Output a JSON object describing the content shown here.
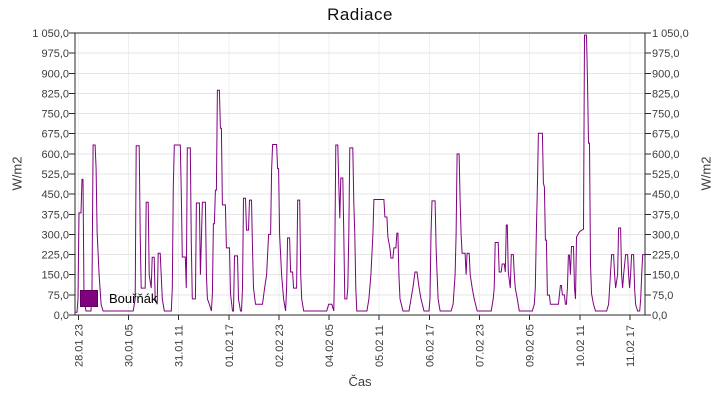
{
  "page": {
    "title": "Radiace"
  },
  "legend": {
    "label": "Bouřňák",
    "swatch_color": "#800080"
  },
  "colors": {
    "accent": "#800080",
    "grid_h": "#e5e5e5",
    "grid_v": "#efefef",
    "frame": "#2a2a2a",
    "text": "#3c3c3c",
    "title_text": "#101010"
  },
  "chart_data": {
    "type": "line",
    "title": "Radiace",
    "xlabel": "Čas",
    "ylabel_left": "W/m2",
    "ylabel_right": "W/m2",
    "grid": true,
    "legend_position": "bottom-left",
    "y_axis": {
      "min": 0,
      "max": 1050,
      "step": 75,
      "tick_labels": [
        "0,0",
        "75,0",
        "150,0",
        "225,0",
        "300,0",
        "375,0",
        "450,0",
        "525,0",
        "600,0",
        "675,0",
        "750,0",
        "825,0",
        "900,0",
        "975,0",
        "1 050,0"
      ]
    },
    "x_axis": {
      "domain_hours": [
        0,
        341
      ],
      "tick_hours": [
        2,
        32,
        62,
        92,
        122,
        152,
        182,
        212,
        242,
        272,
        302,
        332
      ],
      "tick_labels": [
        "28.01 23",
        "30.01 05",
        "31.01 11",
        "01.02 17",
        "02.02 23",
        "04.02 05",
        "05.02 11",
        "06.02 17",
        "07.02 23",
        "09.02 05",
        "10.02 11",
        "11.02 17"
      ]
    },
    "series": [
      {
        "name": "Bouřňák",
        "color": "#800080",
        "points": [
          [
            0,
            10
          ],
          [
            1.2,
            10
          ],
          [
            1.8,
            60
          ],
          [
            2.4,
            380
          ],
          [
            3.6,
            380
          ],
          [
            4.2,
            505
          ],
          [
            4.8,
            505
          ],
          [
            5.4,
            60
          ],
          [
            6.6,
            15
          ],
          [
            9.6,
            15
          ],
          [
            10.2,
            100
          ],
          [
            10.8,
            633
          ],
          [
            12,
            633
          ],
          [
            12.6,
            545
          ],
          [
            13.2,
            310
          ],
          [
            14.4,
            150
          ],
          [
            15.6,
            40
          ],
          [
            16.8,
            15
          ],
          [
            34.8,
            15
          ],
          [
            36,
            60
          ],
          [
            36.6,
            630
          ],
          [
            38.4,
            630
          ],
          [
            39,
            300
          ],
          [
            39.6,
            100
          ],
          [
            42,
            100
          ],
          [
            42.6,
            420
          ],
          [
            43.8,
            420
          ],
          [
            44.4,
            150
          ],
          [
            45.6,
            100
          ],
          [
            46.2,
            215
          ],
          [
            47.4,
            215
          ],
          [
            48,
            60
          ],
          [
            49.2,
            40
          ],
          [
            49.8,
            230
          ],
          [
            51,
            230
          ],
          [
            52.2,
            60
          ],
          [
            53.4,
            15
          ],
          [
            57.6,
            15
          ],
          [
            58.2,
            100
          ],
          [
            58.8,
            477
          ],
          [
            59.4,
            633
          ],
          [
            63,
            633
          ],
          [
            63.6,
            450
          ],
          [
            64.2,
            216
          ],
          [
            66,
            216
          ],
          [
            66.6,
            100
          ],
          [
            67.2,
            622
          ],
          [
            69,
            622
          ],
          [
            69.6,
            268
          ],
          [
            70.2,
            60
          ],
          [
            72,
            60
          ],
          [
            72.6,
            417
          ],
          [
            74.4,
            417
          ],
          [
            75,
            150
          ],
          [
            76.2,
            420
          ],
          [
            78,
            420
          ],
          [
            78.6,
            150
          ],
          [
            79.2,
            60
          ],
          [
            80.4,
            40
          ],
          [
            81.6,
            15
          ],
          [
            82.2,
            80
          ],
          [
            82.8,
            340
          ],
          [
            83.4,
            340
          ],
          [
            84,
            465
          ],
          [
            84.6,
            465
          ],
          [
            85.2,
            837
          ],
          [
            86.4,
            837
          ],
          [
            87,
            695
          ],
          [
            87.6,
            695
          ],
          [
            88.2,
            410
          ],
          [
            90,
            410
          ],
          [
            90.6,
            250
          ],
          [
            92.4,
            250
          ],
          [
            93,
            80
          ],
          [
            94.2,
            15
          ],
          [
            94.8,
            15
          ],
          [
            95.4,
            220
          ],
          [
            97.2,
            220
          ],
          [
            97.8,
            60
          ],
          [
            99,
            15
          ],
          [
            99.6,
            15
          ],
          [
            100.2,
            100
          ],
          [
            100.8,
            435
          ],
          [
            102,
            435
          ],
          [
            102.6,
            316
          ],
          [
            103.8,
            316
          ],
          [
            104.4,
            428
          ],
          [
            105.6,
            428
          ],
          [
            106.2,
            250
          ],
          [
            106.8,
            100
          ],
          [
            108,
            40
          ],
          [
            112.2,
            40
          ],
          [
            113.4,
            100
          ],
          [
            114.6,
            150
          ],
          [
            115.8,
            300
          ],
          [
            117,
            300
          ],
          [
            117.6,
            540
          ],
          [
            118.2,
            635
          ],
          [
            120.6,
            635
          ],
          [
            121.2,
            545
          ],
          [
            121.8,
            545
          ],
          [
            122.4,
            300
          ],
          [
            123.6,
            150
          ],
          [
            124.8,
            60
          ],
          [
            126,
            15
          ],
          [
            126.6,
            100
          ],
          [
            127.2,
            287
          ],
          [
            128.4,
            287
          ],
          [
            129,
            160
          ],
          [
            130.2,
            160
          ],
          [
            130.8,
            100
          ],
          [
            132.6,
            100
          ],
          [
            133.2,
            428
          ],
          [
            134.4,
            428
          ],
          [
            135,
            150
          ],
          [
            135.6,
            60
          ],
          [
            136.8,
            15
          ],
          [
            150.6,
            15
          ],
          [
            151.8,
            40
          ],
          [
            153.6,
            40
          ],
          [
            154.8,
            15
          ],
          [
            155.4,
            230
          ],
          [
            156,
            633
          ],
          [
            157.2,
            633
          ],
          [
            157.8,
            480
          ],
          [
            158.4,
            360
          ],
          [
            159,
            510
          ],
          [
            160.2,
            510
          ],
          [
            160.8,
            300
          ],
          [
            161.4,
            60
          ],
          [
            162.6,
            60
          ],
          [
            163.2,
            100
          ],
          [
            163.8,
            300
          ],
          [
            164.4,
            622
          ],
          [
            166.2,
            622
          ],
          [
            166.8,
            420
          ],
          [
            167.4,
            300
          ],
          [
            168,
            100
          ],
          [
            168.6,
            15
          ],
          [
            174.6,
            15
          ],
          [
            175.8,
            60
          ],
          [
            177,
            150
          ],
          [
            178.2,
            300
          ],
          [
            178.8,
            430
          ],
          [
            184.8,
            430
          ],
          [
            185.4,
            365
          ],
          [
            186.6,
            365
          ],
          [
            187.2,
            290
          ],
          [
            188.4,
            250
          ],
          [
            189,
            212
          ],
          [
            190.2,
            212
          ],
          [
            190.8,
            250
          ],
          [
            192,
            250
          ],
          [
            192.6,
            305
          ],
          [
            193.2,
            305
          ],
          [
            193.8,
            150
          ],
          [
            194.4,
            60
          ],
          [
            196.2,
            15
          ],
          [
            199.8,
            15
          ],
          [
            201,
            60
          ],
          [
            202.2,
            104
          ],
          [
            203.4,
            160
          ],
          [
            204.6,
            160
          ],
          [
            205.8,
            104
          ],
          [
            207,
            60
          ],
          [
            208.8,
            15
          ],
          [
            211.8,
            15
          ],
          [
            212.4,
            60
          ],
          [
            213,
            300
          ],
          [
            213.6,
            425
          ],
          [
            215.4,
            425
          ],
          [
            216,
            250
          ],
          [
            216.6,
            150
          ],
          [
            217.2,
            60
          ],
          [
            218.4,
            15
          ],
          [
            225,
            15
          ],
          [
            226.2,
            40
          ],
          [
            227.4,
            150
          ],
          [
            228,
            300
          ],
          [
            228.6,
            600
          ],
          [
            229.8,
            600
          ],
          [
            230.4,
            430
          ],
          [
            231,
            300
          ],
          [
            231.6,
            230
          ],
          [
            233.4,
            230
          ],
          [
            234,
            150
          ],
          [
            234.6,
            230
          ],
          [
            235.8,
            230
          ],
          [
            236.4,
            150
          ],
          [
            237.6,
            100
          ],
          [
            238.8,
            60
          ],
          [
            240.6,
            15
          ],
          [
            249,
            15
          ],
          [
            250.2,
            60
          ],
          [
            250.8,
            100
          ],
          [
            251.4,
            270
          ],
          [
            253.2,
            270
          ],
          [
            253.8,
            160
          ],
          [
            255,
            160
          ],
          [
            255.6,
            190
          ],
          [
            256.8,
            190
          ],
          [
            257.4,
            160
          ],
          [
            258,
            335
          ],
          [
            258.6,
            335
          ],
          [
            259.2,
            160
          ],
          [
            260.4,
            100
          ],
          [
            261,
            225
          ],
          [
            262.2,
            225
          ],
          [
            262.8,
            150
          ],
          [
            263.4,
            100
          ],
          [
            264.6,
            60
          ],
          [
            265.8,
            15
          ],
          [
            273.6,
            15
          ],
          [
            274.8,
            40
          ],
          [
            275.4,
            100
          ],
          [
            276,
            300
          ],
          [
            276.6,
            480
          ],
          [
            277.2,
            677
          ],
          [
            279.6,
            677
          ],
          [
            280.2,
            490
          ],
          [
            280.8,
            477
          ],
          [
            281.4,
            279
          ],
          [
            282,
            279
          ],
          [
            282.6,
            74
          ],
          [
            283.8,
            74
          ],
          [
            284.4,
            40
          ],
          [
            289.2,
            40
          ],
          [
            289.8,
            75
          ],
          [
            290.4,
            110
          ],
          [
            291,
            110
          ],
          [
            291.6,
            75
          ],
          [
            292.8,
            75
          ],
          [
            293.4,
            40
          ],
          [
            294,
            40
          ],
          [
            294.6,
            100
          ],
          [
            295.2,
            223
          ],
          [
            295.8,
            223
          ],
          [
            296.4,
            150
          ],
          [
            297,
            255
          ],
          [
            298.2,
            255
          ],
          [
            298.8,
            100
          ],
          [
            299.4,
            60
          ],
          [
            300,
            290
          ],
          [
            301.8,
            310
          ],
          [
            304.2,
            320
          ],
          [
            304.8,
            1042
          ],
          [
            306,
            1042
          ],
          [
            306.6,
            870
          ],
          [
            307.2,
            640
          ],
          [
            307.8,
            640
          ],
          [
            308.4,
            190
          ],
          [
            309,
            80
          ],
          [
            310.2,
            40
          ],
          [
            311.4,
            15
          ],
          [
            318,
            15
          ],
          [
            319.2,
            40
          ],
          [
            319.8,
            100
          ],
          [
            321,
            225
          ],
          [
            322.2,
            225
          ],
          [
            322.8,
            150
          ],
          [
            323.4,
            100
          ],
          [
            324.6,
            150
          ],
          [
            325.2,
            324
          ],
          [
            326.4,
            324
          ],
          [
            327,
            150
          ],
          [
            327.6,
            100
          ],
          [
            328.2,
            150
          ],
          [
            329.4,
            225
          ],
          [
            330.6,
            225
          ],
          [
            331.2,
            150
          ],
          [
            331.8,
            100
          ],
          [
            332.4,
            150
          ],
          [
            333,
            225
          ],
          [
            334.2,
            225
          ],
          [
            334.8,
            100
          ],
          [
            335.4,
            40
          ],
          [
            336.6,
            15
          ],
          [
            337.8,
            15
          ],
          [
            338.4,
            60
          ],
          [
            339,
            150
          ],
          [
            339.6,
            225
          ],
          [
            340.8,
            225
          ],
          [
            341,
            220
          ]
        ]
      }
    ]
  }
}
